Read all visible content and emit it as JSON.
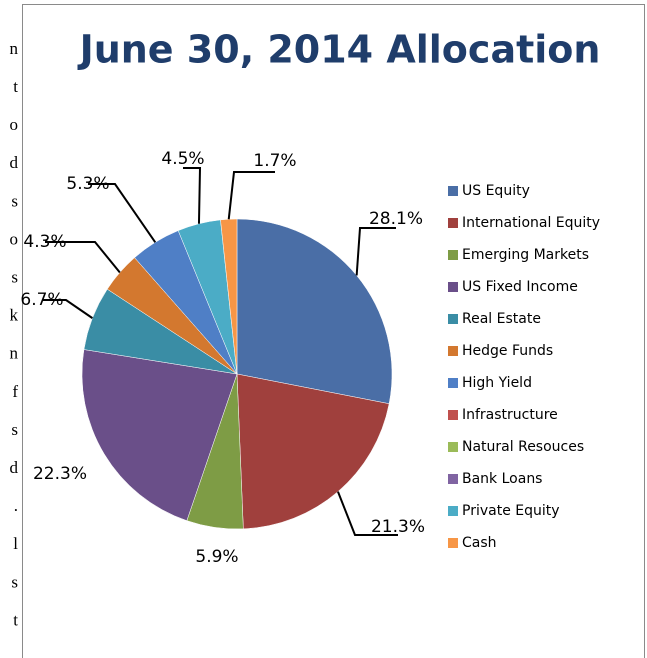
{
  "side_text": [
    "n",
    "t",
    "o",
    "d",
    "s",
    "o",
    "s",
    "k",
    "n",
    "f",
    "s",
    "d",
    ".",
    "l",
    "s",
    "t"
  ],
  "chart_data": {
    "type": "pie",
    "title": "June 30, 2014 Allocation",
    "categories": [
      "US Equity",
      "International  Equity",
      "Emerging Markets",
      "US Fixed Income",
      "Real Estate",
      "Hedge Funds",
      "High Yield",
      "Infrastructure",
      "Natural Resouces",
      "Bank Loans",
      "Private Equity",
      "Cash"
    ],
    "values": [
      28.1,
      21.3,
      5.9,
      22.3,
      6.7,
      4.3,
      5.3,
      0,
      0,
      0,
      4.5,
      1.7
    ],
    "value_labels": [
      "28.1%",
      "21.3%",
      "5.9%",
      "22.3%",
      "6.7%",
      "4.3%",
      "5.3%",
      null,
      null,
      null,
      "4.5%",
      "1.7%"
    ],
    "colors": [
      "#4a6ea6",
      "#a0403d",
      "#7e9c45",
      "#6a4f89",
      "#3a8da5",
      "#d3782f",
      "#4f7fc6",
      "#c0504d",
      "#9bbb59",
      "#8064a2",
      "#4bacc6",
      "#f79646"
    ],
    "legend": "right"
  }
}
